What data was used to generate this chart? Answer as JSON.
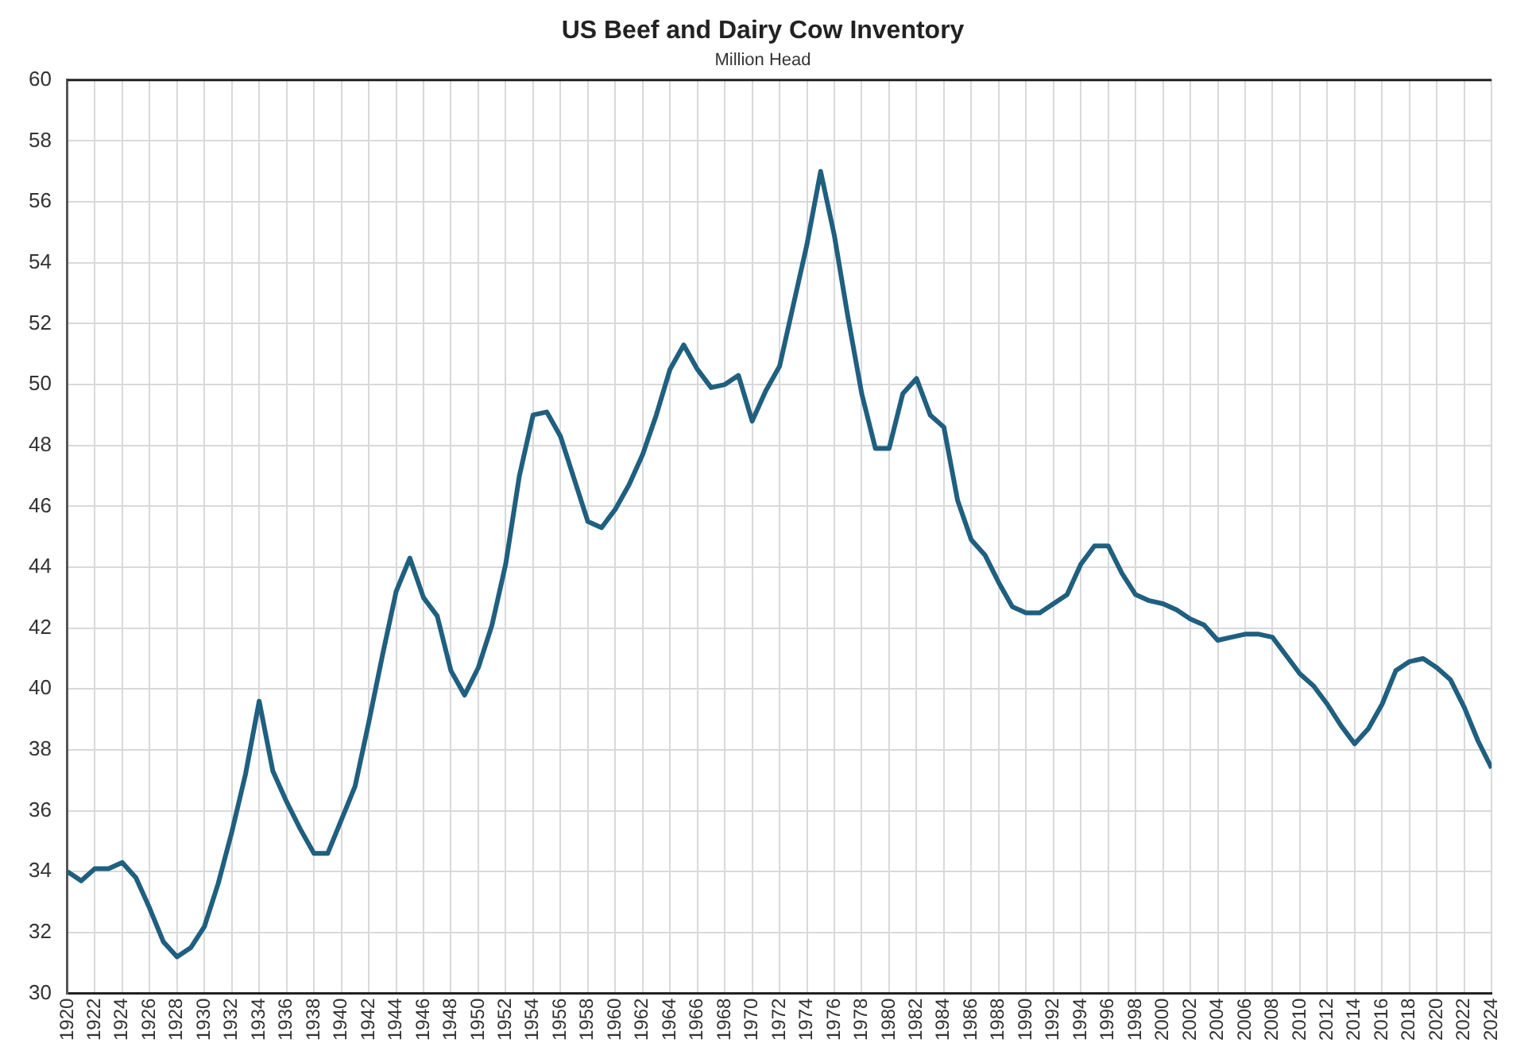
{
  "chart_data": {
    "type": "line",
    "title": "US Beef and Dairy Cow Inventory",
    "subtitle": "Million Head",
    "x": [
      1920,
      1921,
      1922,
      1923,
      1924,
      1925,
      1926,
      1927,
      1928,
      1929,
      1930,
      1931,
      1932,
      1933,
      1934,
      1935,
      1936,
      1937,
      1938,
      1939,
      1940,
      1941,
      1942,
      1943,
      1944,
      1945,
      1946,
      1947,
      1948,
      1949,
      1950,
      1951,
      1952,
      1953,
      1954,
      1955,
      1956,
      1957,
      1958,
      1959,
      1960,
      1961,
      1962,
      1963,
      1964,
      1965,
      1966,
      1967,
      1968,
      1969,
      1970,
      1971,
      1972,
      1973,
      1974,
      1975,
      1976,
      1977,
      1978,
      1979,
      1980,
      1981,
      1982,
      1983,
      1984,
      1985,
      1986,
      1987,
      1988,
      1989,
      1990,
      1991,
      1992,
      1993,
      1994,
      1995,
      1996,
      1997,
      1998,
      1999,
      2000,
      2001,
      2002,
      2003,
      2004,
      2005,
      2006,
      2007,
      2008,
      2009,
      2010,
      2011,
      2012,
      2013,
      2014,
      2015,
      2016,
      2017,
      2018,
      2019,
      2020,
      2021,
      2022,
      2023,
      2024
    ],
    "series": [
      {
        "color": "#1f5f7f",
        "values": [
          34.0,
          33.7,
          34.1,
          34.1,
          34.3,
          33.8,
          32.8,
          31.7,
          31.2,
          31.5,
          32.2,
          33.6,
          35.3,
          37.2,
          39.6,
          37.3,
          36.3,
          35.4,
          34.6,
          34.6,
          35.7,
          36.8,
          38.9,
          41.1,
          43.2,
          44.3,
          43.0,
          42.4,
          40.6,
          39.8,
          40.7,
          42.1,
          44.1,
          47.0,
          49.0,
          49.1,
          48.3,
          46.9,
          45.5,
          45.3,
          45.9,
          46.7,
          47.7,
          49.0,
          50.5,
          51.3,
          50.5,
          49.9,
          50.0,
          50.3,
          48.8,
          49.8,
          50.6,
          52.6,
          54.6,
          57.0,
          54.9,
          52.2,
          49.7,
          47.9,
          47.9,
          49.7,
          50.2,
          49.0,
          48.6,
          46.2,
          44.9,
          44.4,
          43.5,
          42.7,
          42.5,
          42.5,
          42.8,
          43.1,
          44.1,
          44.7,
          44.7,
          43.8,
          43.1,
          42.9,
          42.8,
          42.6,
          42.3,
          42.1,
          41.6,
          41.7,
          41.8,
          41.8,
          41.7,
          41.1,
          40.5,
          40.1,
          39.5,
          38.8,
          38.2,
          38.7,
          39.5,
          40.6,
          40.9,
          41.0,
          40.7,
          40.3,
          39.4,
          38.3,
          37.4
        ]
      }
    ],
    "xlim": [
      1920,
      2024
    ],
    "xticks": [
      1920,
      1922,
      1924,
      1926,
      1928,
      1930,
      1932,
      1934,
      1936,
      1938,
      1940,
      1942,
      1944,
      1946,
      1948,
      1950,
      1952,
      1954,
      1956,
      1958,
      1960,
      1962,
      1964,
      1966,
      1968,
      1970,
      1972,
      1974,
      1976,
      1978,
      1980,
      1982,
      1984,
      1986,
      1988,
      1990,
      1992,
      1994,
      1996,
      1998,
      2000,
      2002,
      2004,
      2006,
      2008,
      2010,
      2012,
      2014,
      2016,
      2018,
      2020,
      2022,
      2024
    ],
    "ylim": [
      30,
      60
    ],
    "yticks": [
      30,
      32,
      34,
      36,
      38,
      40,
      42,
      44,
      46,
      48,
      50,
      52,
      54,
      56,
      58,
      60
    ],
    "grid": true,
    "legend": false,
    "marker": "none",
    "line_style": "solid"
  }
}
